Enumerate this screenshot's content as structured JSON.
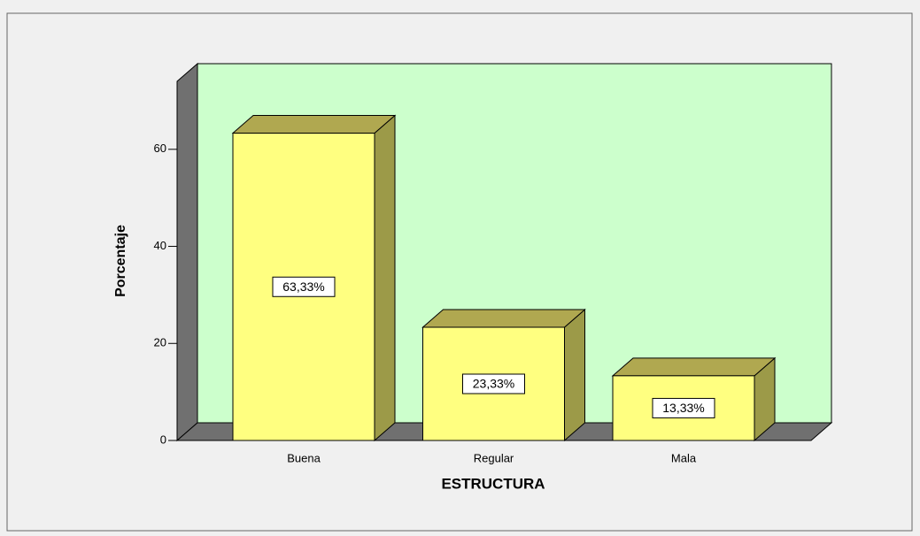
{
  "chart_data": {
    "type": "bar3d",
    "categories": [
      "Buena",
      "Regular",
      "Mala"
    ],
    "values": [
      63.33,
      23.33,
      13.33
    ],
    "value_labels": [
      "63,33%",
      "23,33%",
      "13,33%"
    ],
    "color": "#ffff80",
    "x_label": "ESTRUCTURA",
    "y_label": "Porcentaje",
    "ylim": [
      0,
      74
    ],
    "yticks": [
      0,
      20,
      40,
      60
    ]
  }
}
